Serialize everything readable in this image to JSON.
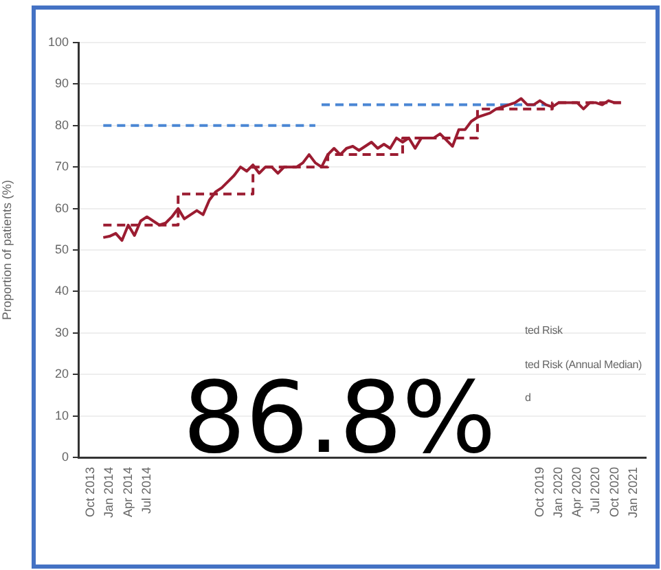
{
  "chart_data": {
    "type": "line",
    "ylabel": "Proportion of patients (%)",
    "x": [
      "2013-12",
      "2014-01",
      "2014-02",
      "2014-03",
      "2014-04",
      "2014-05",
      "2014-06",
      "2014-07",
      "2014-08",
      "2014-09",
      "2014-10",
      "2014-11",
      "2014-12",
      "2015-01",
      "2015-02",
      "2015-03",
      "2015-04",
      "2015-05",
      "2015-06",
      "2015-07",
      "2015-08",
      "2015-09",
      "2015-10",
      "2015-11",
      "2015-12",
      "2016-01",
      "2016-02",
      "2016-03",
      "2016-04",
      "2016-05",
      "2016-06",
      "2016-07",
      "2016-08",
      "2016-09",
      "2016-10",
      "2016-11",
      "2016-12",
      "2017-01",
      "2017-02",
      "2017-03",
      "2017-04",
      "2017-05",
      "2017-06",
      "2017-07",
      "2017-08",
      "2017-09",
      "2017-10",
      "2017-11",
      "2017-12",
      "2018-01",
      "2018-02",
      "2018-03",
      "2018-04",
      "2018-05",
      "2018-06",
      "2018-07",
      "2018-08",
      "2018-09",
      "2018-10",
      "2018-11",
      "2018-12",
      "2019-01",
      "2019-02",
      "2019-03",
      "2019-04",
      "2019-05",
      "2019-06",
      "2019-07",
      "2019-08",
      "2019-09",
      "2019-10",
      "2019-11",
      "2019-12",
      "2020-01",
      "2020-02",
      "2020-03",
      "2020-04",
      "2020-05",
      "2020-06",
      "2020-07",
      "2020-08",
      "2020-09",
      "2020-10",
      "2020-11"
    ],
    "series": [
      {
        "type": "line",
        "color": "#9b1c31",
        "values": [
          53,
          53.3,
          54,
          52.3,
          56,
          53.5,
          57,
          58,
          57,
          56,
          56.5,
          58,
          60,
          57.5,
          58.5,
          59.5,
          58.5,
          62,
          64,
          65,
          66.5,
          68,
          70,
          69,
          70.5,
          68.5,
          70,
          70,
          68.5,
          70,
          70,
          70,
          71,
          73,
          71,
          70,
          73,
          74.5,
          73,
          74.5,
          75,
          74,
          75,
          76,
          74.5,
          75.5,
          74.5,
          77,
          76,
          77,
          74.5,
          77,
          77,
          77,
          78,
          76.5,
          75,
          79,
          79,
          81,
          82,
          82.5,
          83,
          84,
          84.5,
          85,
          85.5,
          86.5,
          85,
          85,
          86,
          85,
          84.5,
          85.5,
          85.5,
          85.5,
          85.5,
          84,
          85.5,
          85.5,
          85,
          86,
          85.5,
          85.5
        ]
      },
      {
        "type": "step",
        "color": "#9b1c31",
        "line_style": "dashed",
        "x": [
          "2013-12",
          "2014-12",
          "2015-12",
          "2016-12",
          "2017-12",
          "2018-12",
          "2019-12",
          "2020-11"
        ],
        "values": [
          56,
          63.5,
          70,
          73,
          77,
          84,
          85.5,
          85.5
        ]
      },
      {
        "type": "line",
        "color": "#4a86d4",
        "line_style": "dashed",
        "x": [
          "2013-12",
          "2016-10"
        ],
        "values": [
          80,
          80
        ]
      },
      {
        "type": "line",
        "color": "#4a86d4",
        "line_style": "dashed",
        "x": [
          "2016-11",
          "2019-11"
        ],
        "values": [
          85,
          85
        ]
      }
    ],
    "xlim": [
      "2013-08",
      "2021-03"
    ],
    "xticks": [
      {
        "value": "2013-10",
        "label": "Oct 2013"
      },
      {
        "value": "2014-01",
        "label": "Jan 2014"
      },
      {
        "value": "2014-04",
        "label": "Apr 2014"
      },
      {
        "value": "2014-07",
        "label": "Jul 2014"
      },
      {
        "value": "2019-10",
        "label": "Oct 2019"
      },
      {
        "value": "2020-01",
        "label": "Jan 2020"
      },
      {
        "value": "2020-04",
        "label": "Apr 2020"
      },
      {
        "value": "2020-07",
        "label": "Jul 2020"
      },
      {
        "value": "2020-10",
        "label": "Oct 2020"
      },
      {
        "value": "2021-01",
        "label": "Jan 2021"
      }
    ],
    "ylim": [
      0,
      100
    ],
    "yticks": [
      0,
      10,
      20,
      30,
      40,
      50,
      60,
      70,
      80,
      90,
      100
    ],
    "grid": "y",
    "legend": false,
    "marker": "none",
    "annotations": [
      "86.8%",
      "ted Risk",
      "ted Risk (Annual Median)",
      "d"
    ]
  }
}
